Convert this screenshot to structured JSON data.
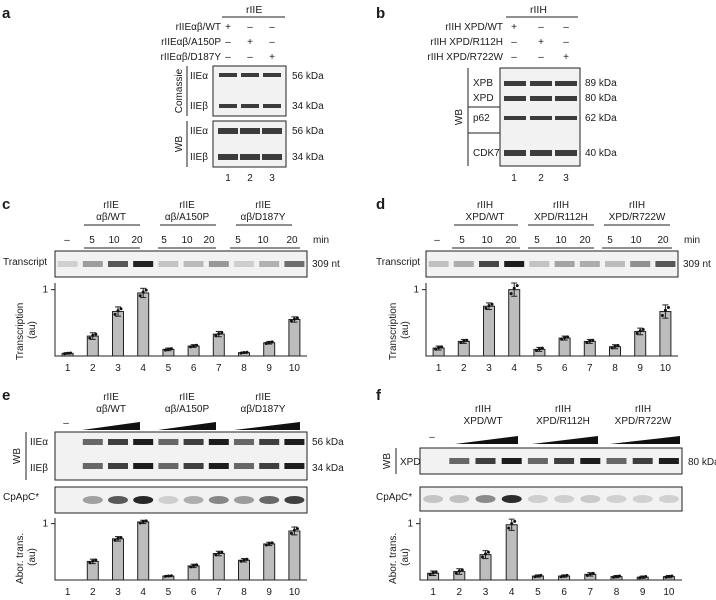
{
  "panels": {
    "a": {
      "label": "a",
      "header": "rIIE",
      "rows": [
        {
          "label": "rIIEαβ/WT",
          "marks": [
            "+",
            "–",
            "–"
          ]
        },
        {
          "label": "rIIEαβ/A150P",
          "marks": [
            "–",
            "+",
            "–"
          ]
        },
        {
          "label": "rIIEαβ/D187Y",
          "marks": [
            "–",
            "–",
            "+"
          ]
        }
      ],
      "blots": [
        {
          "side": "Comassie",
          "bands": [
            {
              "name": "IIEα",
              "kda": "56 kDa"
            },
            {
              "name": "IIEβ",
              "kda": "34 kDa"
            }
          ]
        },
        {
          "side": "WB",
          "bands": [
            {
              "name": "IIEα",
              "kda": "56 kDa"
            },
            {
              "name": "IIEβ",
              "kda": "34 kDa"
            }
          ]
        }
      ],
      "lanes": [
        "1",
        "2",
        "3"
      ]
    },
    "b": {
      "label": "b",
      "header": "rIIH",
      "rows": [
        {
          "label": "rIIH XPD/WT",
          "marks": [
            "+",
            "–",
            "–"
          ]
        },
        {
          "label": "rIIH XPD/R112H",
          "marks": [
            "–",
            "+",
            "–"
          ]
        },
        {
          "label": "rIIH XPD/R722W",
          "marks": [
            "–",
            "–",
            "+"
          ]
        }
      ],
      "side": "WB",
      "bands": [
        {
          "name": "XPB",
          "kda": "89 kDa"
        },
        {
          "name": "XPD",
          "kda": "80 kDa"
        },
        {
          "name": "p62",
          "kda": "62 kDa"
        },
        {
          "name": "CDK7",
          "kda": "40 kDa"
        }
      ],
      "lanes": [
        "1",
        "2",
        "3"
      ]
    },
    "c": {
      "label": "c",
      "groups": [
        {
          "line1": "rIIE",
          "line2": "αβ/WT"
        },
        {
          "line1": "rIIE",
          "line2": "αβ/A150P"
        },
        {
          "line1": "rIIE",
          "line2": "αβ/D187Y"
        }
      ],
      "neg": "–",
      "times": [
        "5",
        "10",
        "20"
      ],
      "unit": "min",
      "blot_label": "Transcript",
      "size": "309 nt",
      "ylabel": "Transcription\n(au)",
      "ytick": "1",
      "lanes": [
        "1",
        "2",
        "3",
        "4",
        "5",
        "6",
        "7",
        "8",
        "9",
        "10"
      ]
    },
    "d": {
      "label": "d",
      "groups": [
        {
          "line1": "rIIH",
          "line2": "XPD/WT"
        },
        {
          "line1": "rIIH",
          "line2": "XPD/R112H"
        },
        {
          "line1": "rIIH",
          "line2": "XPD/R722W"
        }
      ],
      "neg": "–",
      "times": [
        "5",
        "10",
        "20"
      ],
      "unit": "min",
      "blot_label": "Transcript",
      "size": "309 nt",
      "ylabel": "Transcription\n(au)",
      "ytick": "1",
      "lanes": [
        "1",
        "2",
        "3",
        "4",
        "5",
        "6",
        "7",
        "8",
        "9",
        "10"
      ]
    },
    "e": {
      "label": "e",
      "groups": [
        {
          "line1": "rIIE",
          "line2": "αβ/WT"
        },
        {
          "line1": "rIIE",
          "line2": "αβ/A150P"
        },
        {
          "line1": "rIIE",
          "line2": "αβ/D187Y"
        }
      ],
      "neg": "–",
      "side": "WB",
      "bands": [
        {
          "name": "IIEα",
          "kda": "56 kDa"
        },
        {
          "name": "IIEβ",
          "kda": "34 kDa"
        }
      ],
      "blot2_label": "CpApC*",
      "ylabel": "Abor. trans.\n(au)",
      "ytick": "1",
      "lanes": [
        "1",
        "2",
        "3",
        "4",
        "5",
        "6",
        "7",
        "8",
        "9",
        "10"
      ]
    },
    "f": {
      "label": "f",
      "groups": [
        {
          "line1": "rIIH",
          "line2": "XPD/WT"
        },
        {
          "line1": "rIIH",
          "line2": "XPD/R112H"
        },
        {
          "line1": "rIIH",
          "line2": "XPD/R722W"
        }
      ],
      "neg": "–",
      "side": "WB",
      "bands": [
        {
          "name": "XPD",
          "kda": "80 kDa"
        }
      ],
      "blot2_label": "CpApC*",
      "ylabel": "Abor. trans.\n(au)",
      "ytick": "1",
      "lanes": [
        "1",
        "2",
        "3",
        "4",
        "5",
        "6",
        "7",
        "8",
        "9",
        "10"
      ]
    }
  },
  "chart_data": [
    {
      "type": "bar",
      "panel": "c",
      "ylabel": "Transcription (au)",
      "ylim": [
        0,
        1.1
      ],
      "categories": [
        "1",
        "2",
        "3",
        "4",
        "5",
        "6",
        "7",
        "8",
        "9",
        "10"
      ],
      "values": [
        0.04,
        0.3,
        0.67,
        0.95,
        0.1,
        0.15,
        0.33,
        0.05,
        0.2,
        0.55
      ],
      "errors": [
        0.01,
        0.05,
        0.07,
        0.07,
        0.02,
        0.02,
        0.04,
        0.01,
        0.02,
        0.04
      ]
    },
    {
      "type": "bar",
      "panel": "d",
      "ylabel": "Transcription (au)",
      "ylim": [
        0,
        1.1
      ],
      "categories": [
        "1",
        "2",
        "3",
        "4",
        "5",
        "6",
        "7",
        "8",
        "9",
        "10"
      ],
      "values": [
        0.12,
        0.22,
        0.75,
        1.0,
        0.1,
        0.27,
        0.22,
        0.14,
        0.37,
        0.67
      ],
      "errors": [
        0.03,
        0.03,
        0.05,
        0.1,
        0.03,
        0.03,
        0.03,
        0.03,
        0.05,
        0.1
      ]
    },
    {
      "type": "bar",
      "panel": "e",
      "ylabel": "Abor. trans. (au)",
      "ylim": [
        0,
        1.1
      ],
      "categories": [
        "1",
        "2",
        "3",
        "4",
        "5",
        "6",
        "7",
        "8",
        "9",
        "10"
      ],
      "values": [
        0.0,
        0.33,
        0.73,
        1.03,
        0.07,
        0.25,
        0.47,
        0.35,
        0.64,
        0.87
      ],
      "errors": [
        0,
        0.04,
        0.04,
        0.03,
        0.01,
        0.03,
        0.04,
        0.03,
        0.03,
        0.07
      ]
    },
    {
      "type": "bar",
      "panel": "f",
      "ylabel": "Abor. trans. (au)",
      "ylim": [
        0,
        1.1
      ],
      "categories": [
        "1",
        "2",
        "3",
        "4",
        "5",
        "6",
        "7",
        "8",
        "9",
        "10"
      ],
      "values": [
        0.12,
        0.15,
        0.45,
        0.98,
        0.07,
        0.07,
        0.1,
        0.06,
        0.05,
        0.06
      ],
      "errors": [
        0.04,
        0.05,
        0.07,
        0.1,
        0.02,
        0.02,
        0.03,
        0.02,
        0.02,
        0.02
      ]
    }
  ]
}
